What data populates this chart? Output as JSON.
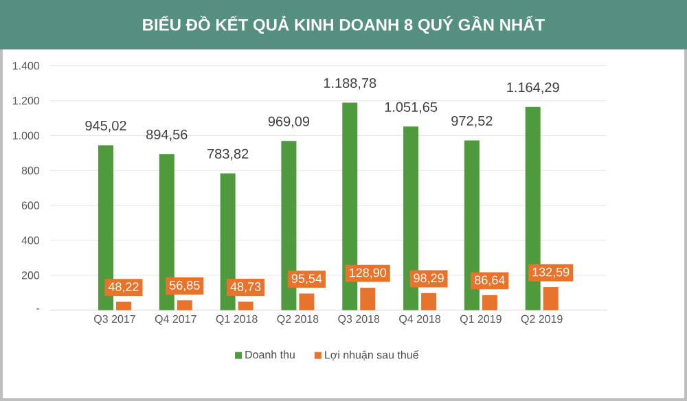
{
  "chart_data": {
    "type": "bar",
    "title": "BIỂU ĐỒ KẾT QUẢ KINH DOANH 8 QUÝ GẦN NHẤT",
    "categories": [
      "Q3 2017",
      "Q4 2017",
      "Q1 2018",
      "Q2 2018",
      "Q3 2018",
      "Q4 2018",
      "Q1 2019",
      "Q2 2019"
    ],
    "series": [
      {
        "name": "Doanh thu",
        "color": "#4f9a3c",
        "values": [
          945.02,
          894.56,
          783.82,
          969.09,
          1188.78,
          1051.65,
          972.52,
          1164.29
        ],
        "value_labels": [
          "945,02",
          "894,56",
          "783,82",
          "969,09",
          "1.188,78",
          "1.051,65",
          "972,52",
          "1.164,29"
        ]
      },
      {
        "name": "Lợi nhuận sau thuế",
        "color": "#e8732c",
        "values": [
          48.22,
          56.85,
          48.73,
          95.54,
          128.9,
          98.29,
          86.64,
          132.59
        ],
        "value_labels": [
          "48,22",
          "56,85",
          "48,73",
          "95,54",
          "128,90",
          "98,29",
          "86,64",
          "132,59"
        ]
      }
    ],
    "ylim": [
      0,
      1400
    ],
    "yticks": [
      {
        "value": 0,
        "label": "-"
      },
      {
        "value": 200,
        "label": "200"
      },
      {
        "value": 400,
        "label": "400"
      },
      {
        "value": 600,
        "label": "600"
      },
      {
        "value": 800,
        "label": "800"
      },
      {
        "value": 1000,
        "label": "1.000"
      },
      {
        "value": 1200,
        "label": "1.200"
      },
      {
        "value": 1400,
        "label": "1.400"
      }
    ],
    "grid": "y",
    "legend": "bottom"
  }
}
